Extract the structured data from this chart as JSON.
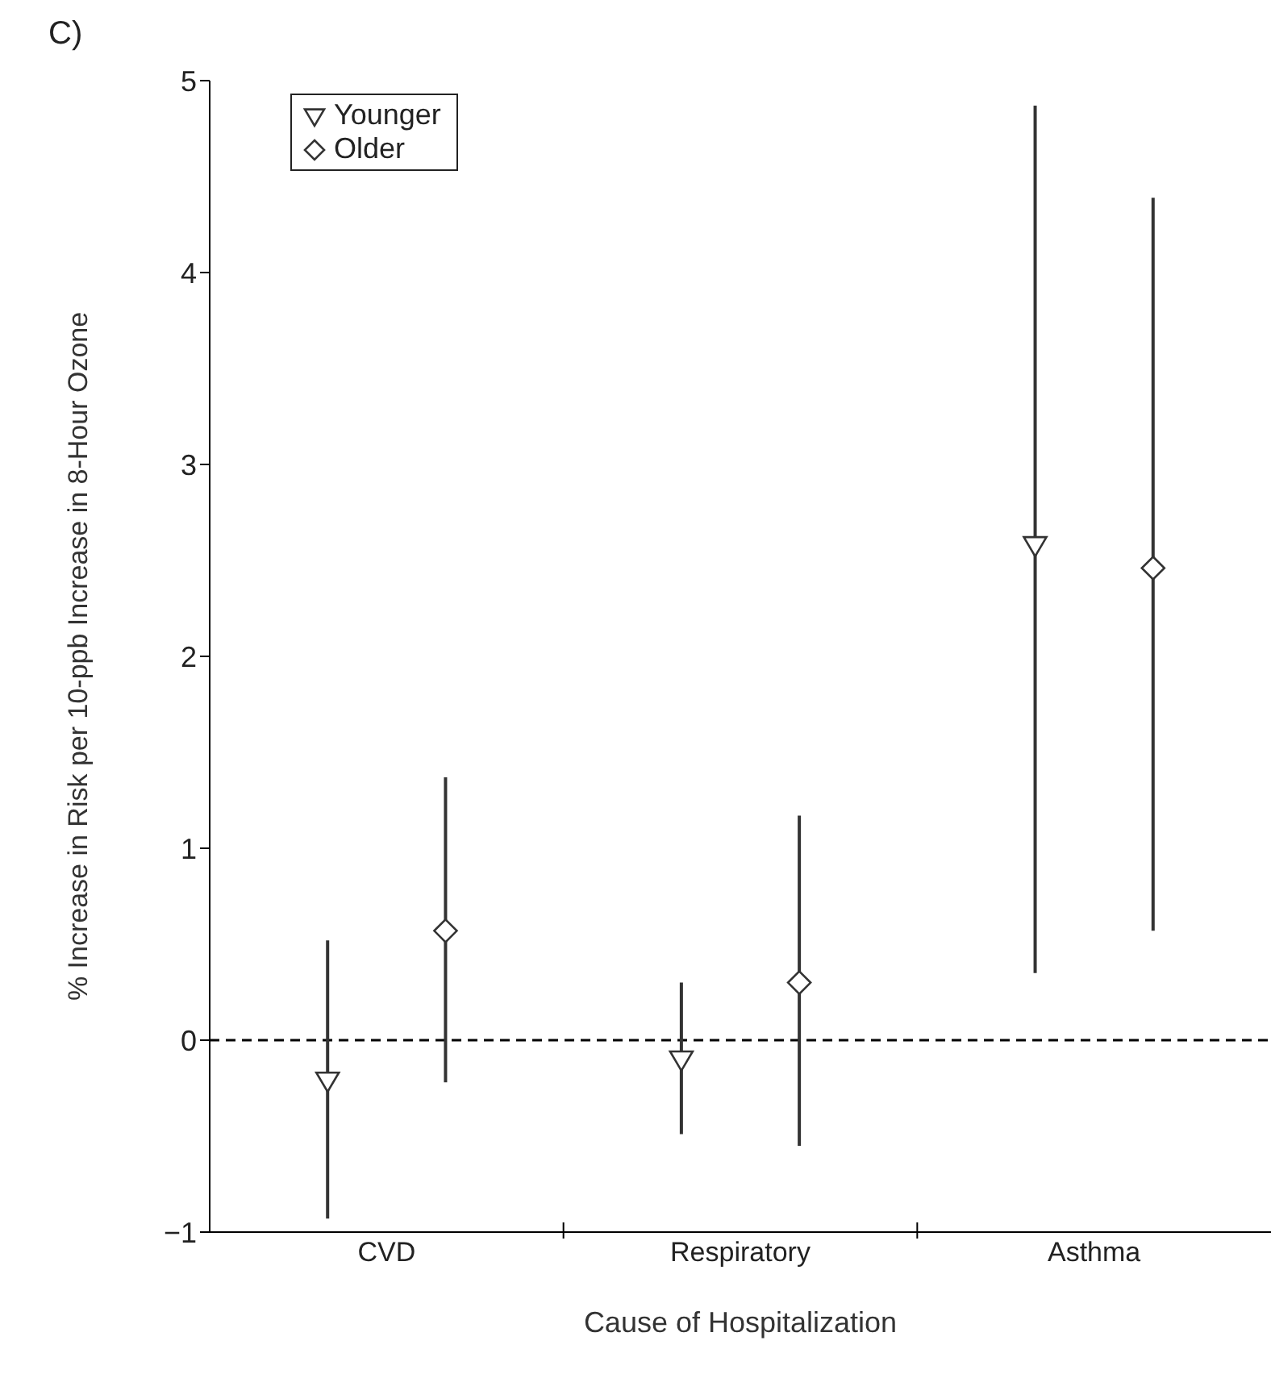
{
  "chart_data": {
    "type": "scatter",
    "title": "C)",
    "xlabel": "Cause of Hospitalization",
    "ylabel": "% Increase in Risk per 10-ppb Increase in 8-Hour Ozone",
    "categories": [
      "CVD",
      "Respiratory",
      "Asthma"
    ],
    "ylim": [
      -1,
      5
    ],
    "yticks": [
      -1,
      0,
      1,
      2,
      3,
      4,
      5
    ],
    "legend": "top left",
    "ref_lines": [
      {
        "axis": "y",
        "value": 0,
        "line_style": "dashed",
        "color": "#000000"
      }
    ],
    "series": [
      {
        "name": "Younger",
        "color": "#333333",
        "marker": "triangle",
        "values": [
          -0.21,
          -0.1,
          2.58
        ],
        "errors": [
          [
            -0.93,
            0.52
          ],
          [
            -0.49,
            0.3
          ],
          [
            0.35,
            4.87
          ]
        ]
      },
      {
        "name": "Older",
        "color": "#333333",
        "marker": "diamond",
        "values": [
          0.57,
          0.3,
          2.46
        ],
        "errors": [
          [
            -0.22,
            1.37
          ],
          [
            -0.55,
            1.17
          ],
          [
            0.57,
            4.39
          ]
        ]
      }
    ]
  }
}
